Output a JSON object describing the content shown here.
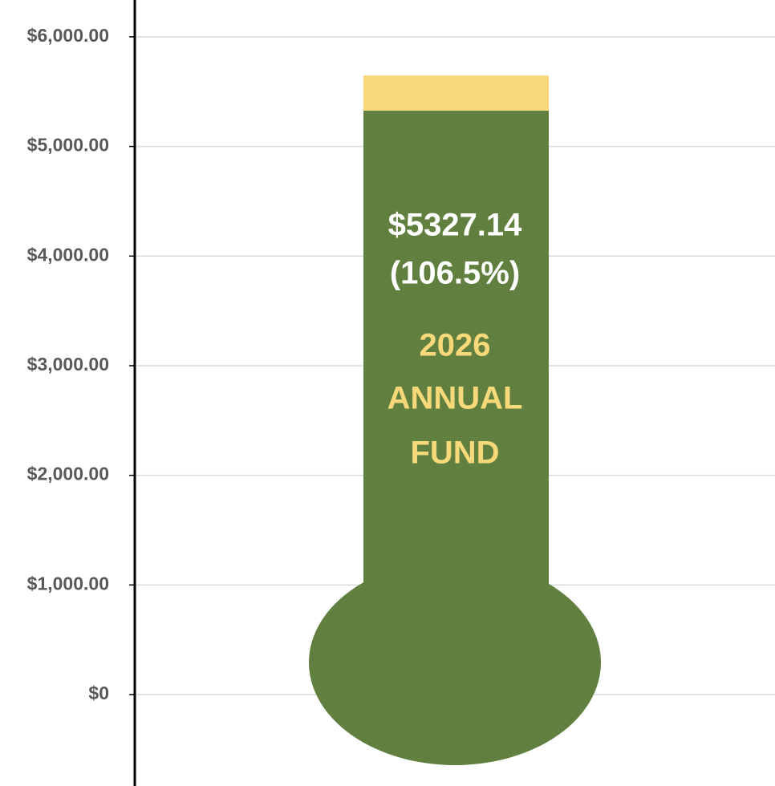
{
  "chart_data": {
    "type": "bar",
    "stacked": true,
    "series": [
      {
        "color": "#61803f",
        "values": [
          5327.14
        ],
        "value_labels": [
          "$5327.14"
        ]
      },
      {
        "color": "#f7d97a",
        "values": [
          320
        ]
      }
    ],
    "annotations": [
      "(106.5%)"
    ],
    "title_lines": [
      "2026",
      "ANNUAL",
      "FUND"
    ],
    "ylim": [
      -834,
      6336
    ],
    "yticks": [
      {
        "value": 0,
        "label": "$0"
      },
      {
        "value": 1000,
        "label": "$1,000.00"
      },
      {
        "value": 2000,
        "label": "$2,000.00"
      },
      {
        "value": 3000,
        "label": "$3,000.00"
      },
      {
        "value": 4000,
        "label": "$4,000.00"
      },
      {
        "value": 5000,
        "label": "$5,000.00"
      },
      {
        "value": 6000,
        "label": "$6,000.00"
      }
    ],
    "grid": true
  }
}
